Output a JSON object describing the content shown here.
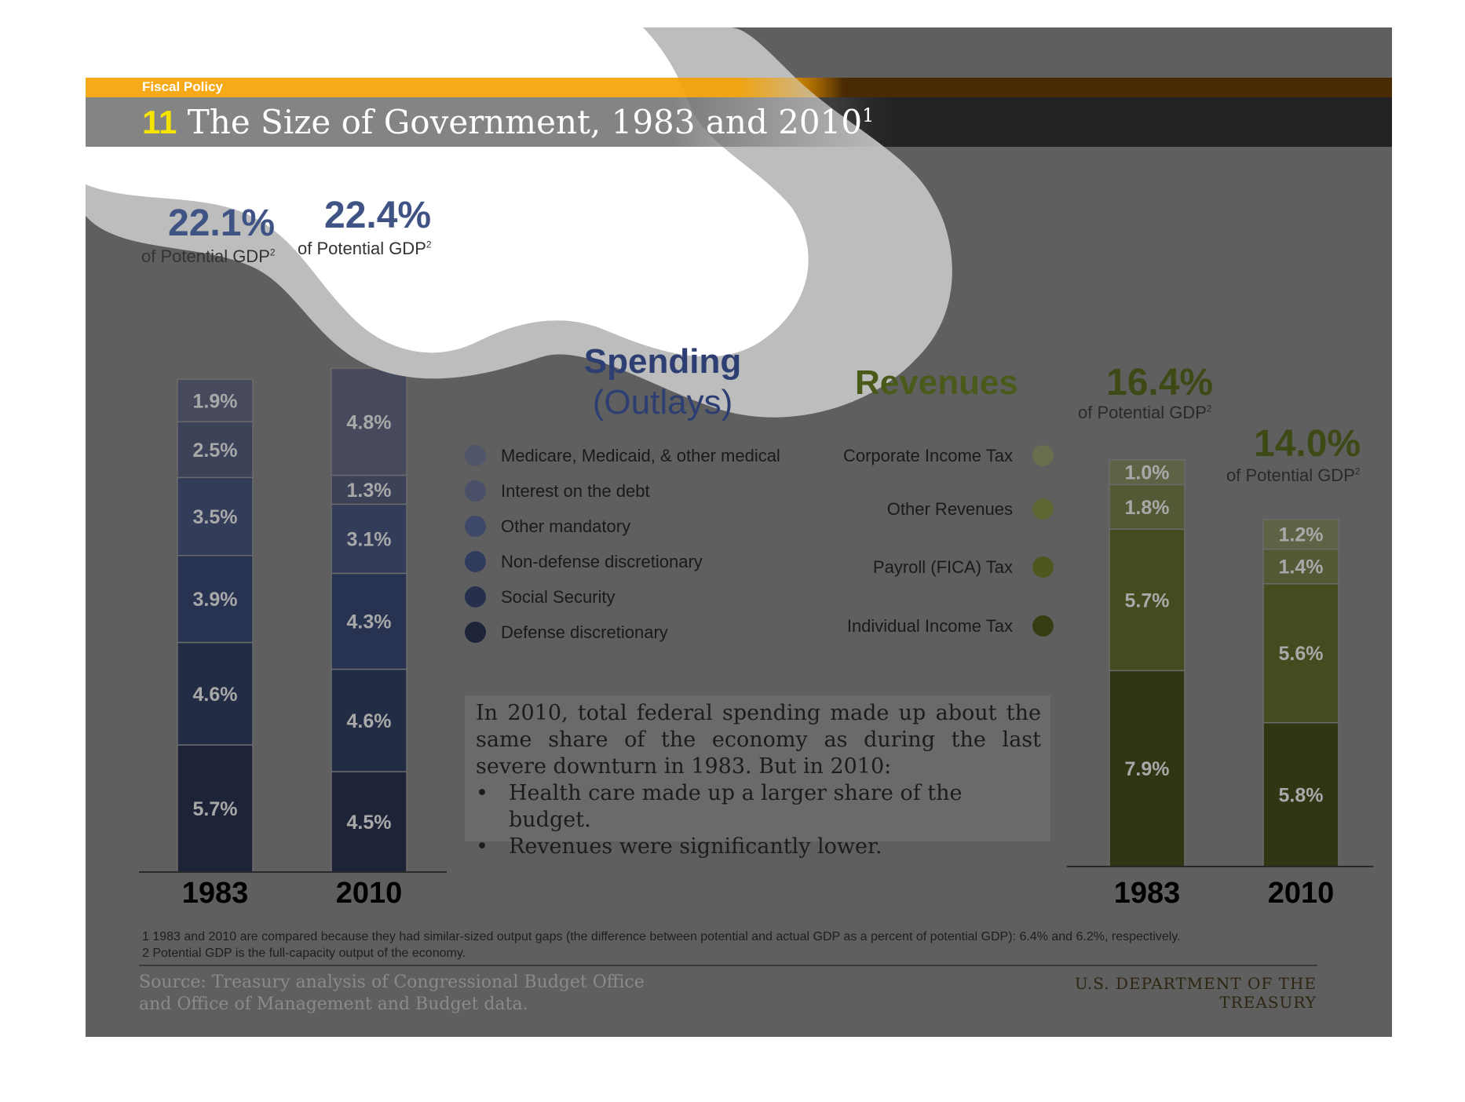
{
  "header": {
    "topic": "Fiscal Policy",
    "number": "11",
    "title": "The Size of Government, 1983 and 2010",
    "title_footnote": "1"
  },
  "spending": {
    "title_line1": "Spending",
    "title_line2": "(Outlays)",
    "totals": [
      {
        "year": "1983",
        "pct": "22.1%",
        "label": "of Potential GDP",
        "sup": "2"
      },
      {
        "year": "2010",
        "pct": "22.4%",
        "label": "of Potential GDP",
        "sup": "2"
      }
    ],
    "legend": [
      {
        "label": "Medicare, Medicaid, & other medical",
        "color": "#50556a"
      },
      {
        "label": "Interest on the debt",
        "color": "#4a5068"
      },
      {
        "label": "Other mandatory",
        "color": "#3e4868"
      },
      {
        "label": "Non-defense discretionary",
        "color": "#2f3c5e"
      },
      {
        "label": "Social Security",
        "color": "#26304d"
      },
      {
        "label": "Defense discretionary",
        "color": "#1e2438"
      }
    ]
  },
  "revenues": {
    "title": "Revenues",
    "totals": [
      {
        "year": "1983",
        "pct": "16.4%",
        "label": "of Potential GDP",
        "sup": "2"
      },
      {
        "year": "2010",
        "pct": "14.0%",
        "label": "of Potential GDP",
        "sup": "2"
      }
    ],
    "legend": [
      {
        "label": "Corporate Income Tax",
        "color": "#6a6e4e"
      },
      {
        "label": "Other Revenues",
        "color": "#5f6633"
      },
      {
        "label": "Payroll (FICA) Tax",
        "color": "#4c5820"
      },
      {
        "label": "Individual Income Tax",
        "color": "#343e12"
      }
    ]
  },
  "chart_data": [
    {
      "type": "bar",
      "stacked": true,
      "categories": [
        "1983",
        "2010"
      ],
      "series": [
        {
          "name": "Defense discretionary",
          "values": [
            5.7,
            4.5
          ],
          "color": "#1e2438"
        },
        {
          "name": "Social Security",
          "values": [
            4.6,
            4.6
          ],
          "color": "#232c45"
        },
        {
          "name": "Non-defense discretionary",
          "values": [
            3.9,
            4.3
          ],
          "color": "#283352"
        },
        {
          "name": "Other mandatory",
          "values": [
            3.5,
            3.1
          ],
          "color": "#333c58"
        },
        {
          "name": "Interest on the debt",
          "values": [
            2.5,
            1.3
          ],
          "color": "#3c4258"
        },
        {
          "name": "Medicare, Medicaid, & other medical",
          "values": [
            1.9,
            4.8
          ],
          "color": "#474a5c"
        }
      ],
      "totals": [
        22.1,
        22.4
      ]
    },
    {
      "type": "bar",
      "stacked": true,
      "categories": [
        "1983",
        "2010"
      ],
      "series": [
        {
          "name": "Individual Income Tax",
          "values": [
            7.9,
            5.8
          ],
          "color": "#2f3614"
        },
        {
          "name": "Payroll (FICA) Tax",
          "values": [
            5.7,
            5.6
          ],
          "color": "#434c1f"
        },
        {
          "name": "Other Revenues",
          "values": [
            1.8,
            1.4
          ],
          "color": "#525934"
        },
        {
          "name": "Corporate Income Tax",
          "values": [
            1.0,
            1.2
          ],
          "color": "#5e6346"
        }
      ],
      "totals": [
        16.4,
        14.0
      ]
    }
  ],
  "note": {
    "paragraph": "In 2010, total federal spending made up about the same share of the economy as during the last severe downturn in 1983. But in 2010:",
    "bullets": [
      "Health care made up a larger share of the budget.",
      "Revenues were significantly lower."
    ]
  },
  "footnotes": [
    "1 1983 and 2010 are compared because they had similar-sized output gaps (the difference between potential and actual GDP as a percent of potential GDP): 6.4% and 6.2%, respectively.",
    "2 Potential GDP is the full-capacity output of the economy."
  ],
  "source": {
    "line1": "Source: Treasury analysis of Congressional Budget Office",
    "line2": "and Office of Management and Budget data."
  },
  "department": "U.S. DEPARTMENT OF THE TREASURY"
}
